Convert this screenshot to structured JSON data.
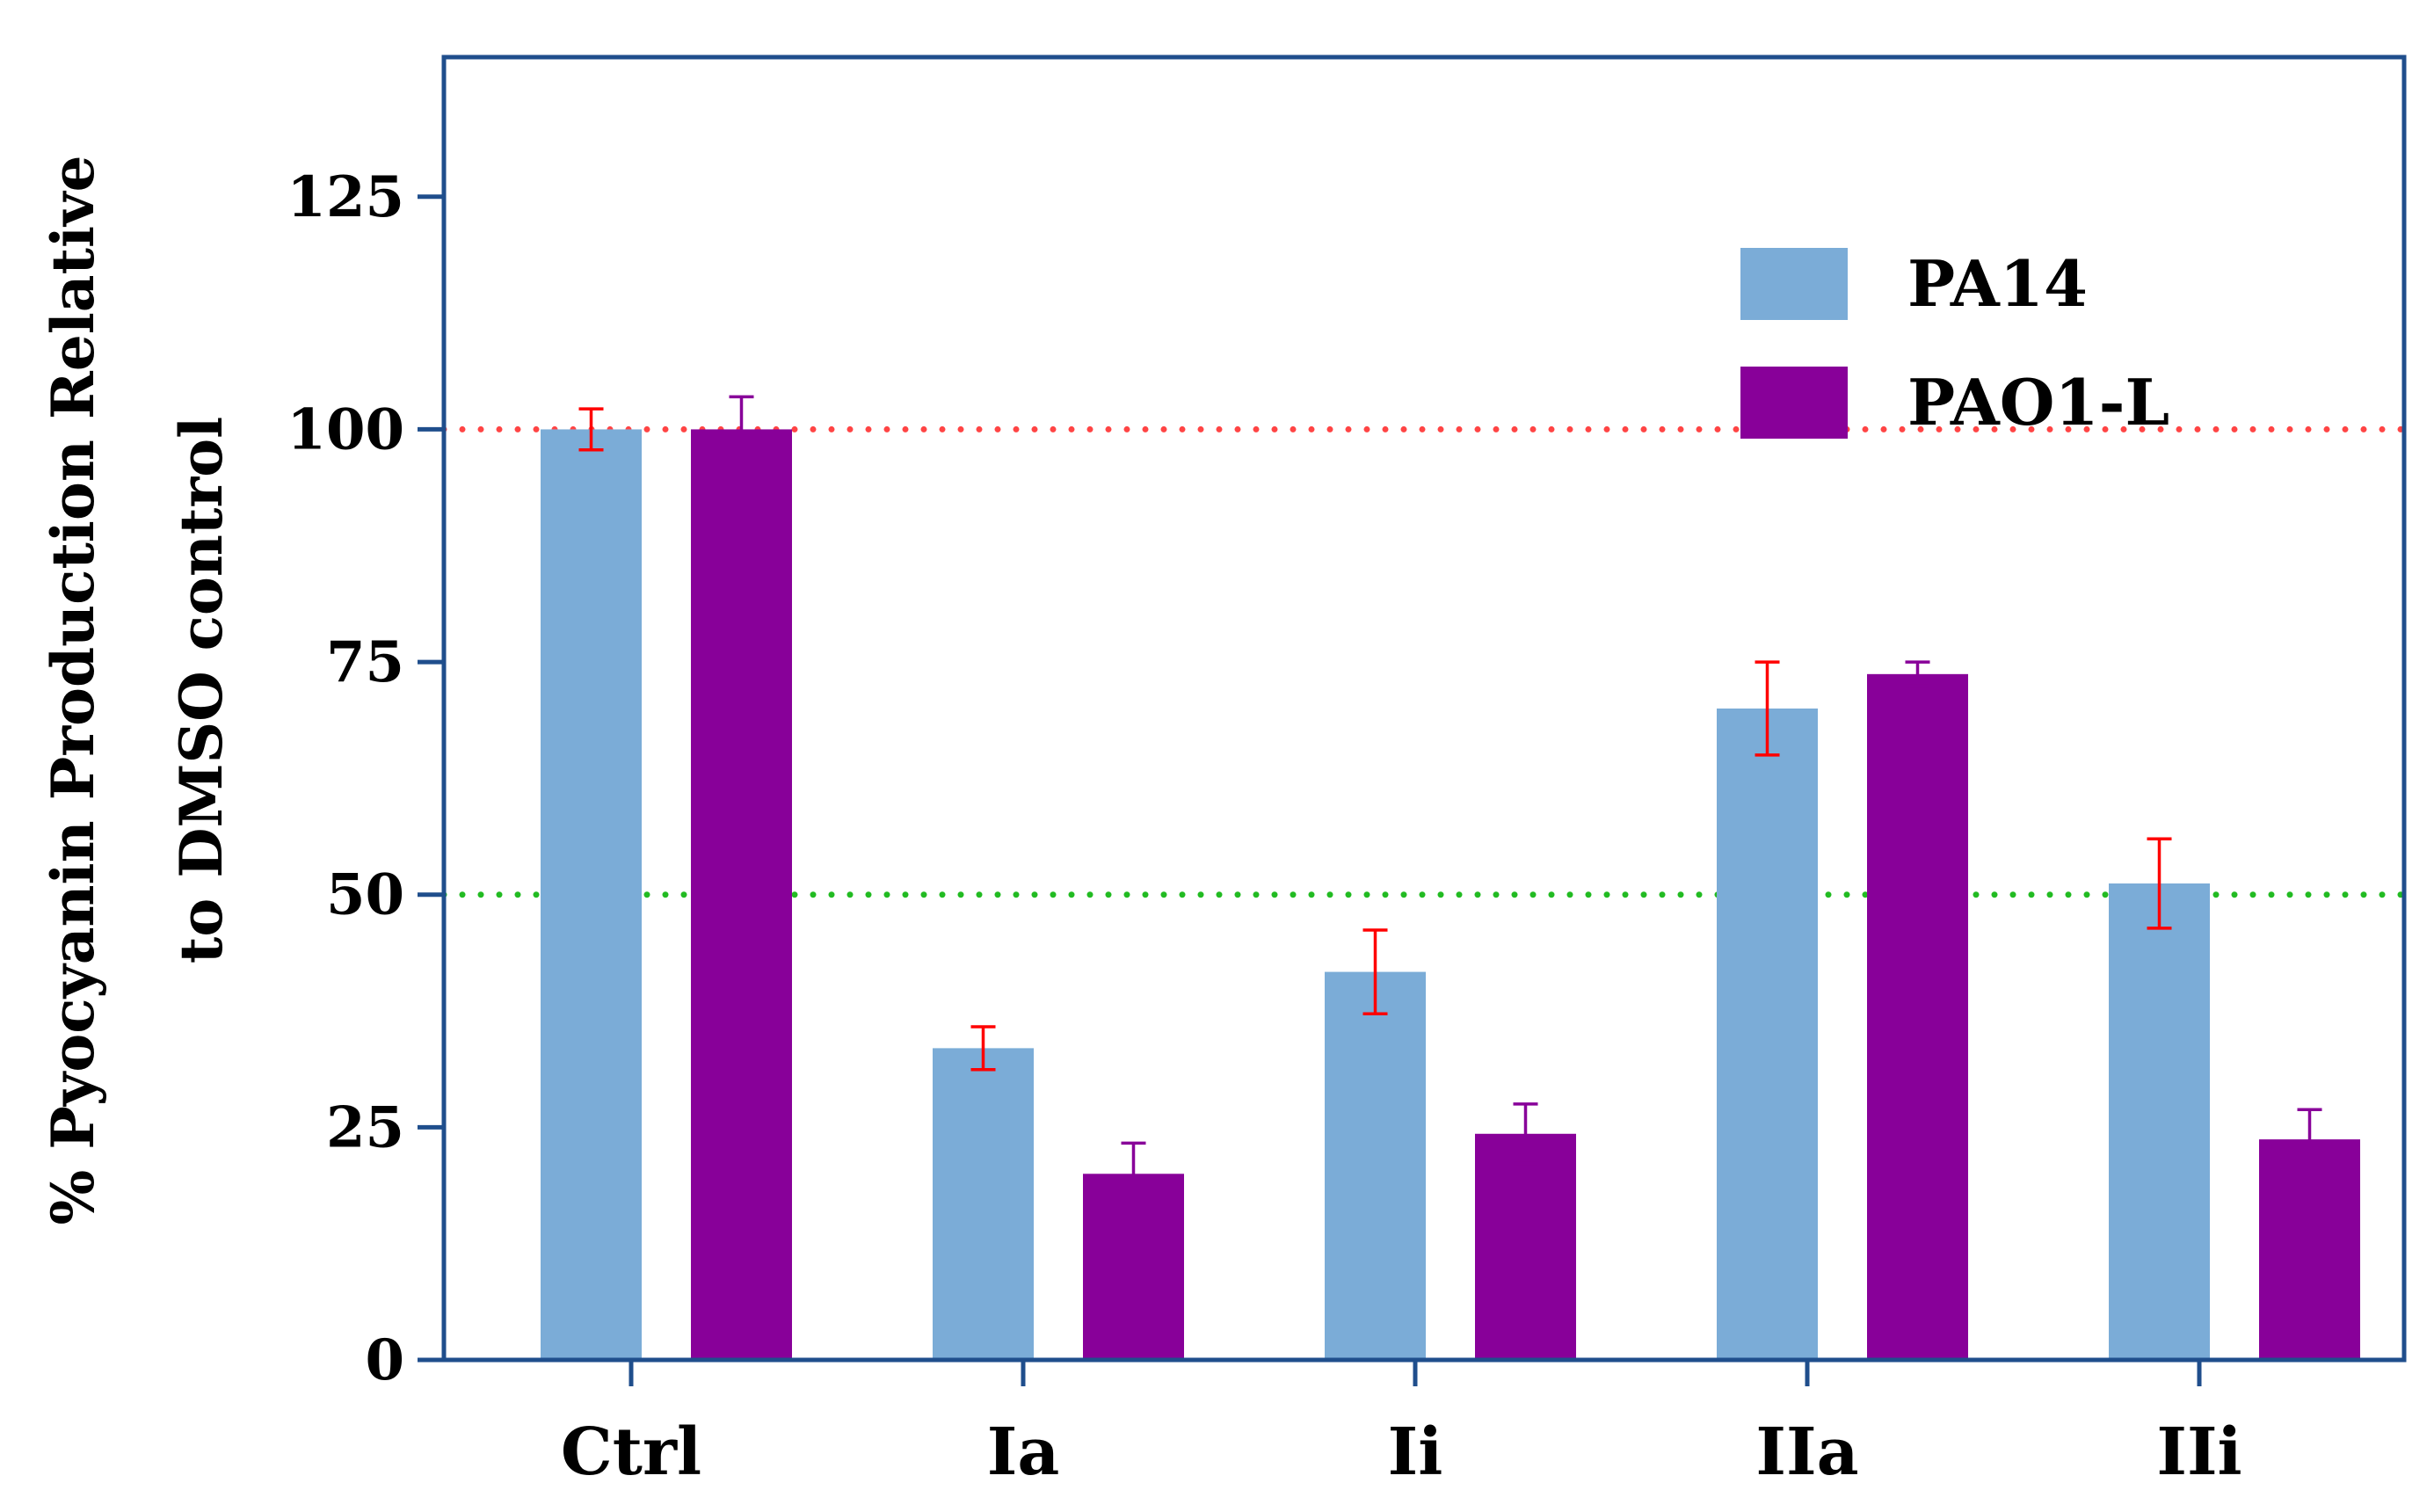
{
  "chart_data": {
    "type": "bar",
    "ylabel_lines": [
      "% Pyocyanin Production Relative",
      "to DMSO control"
    ],
    "xlabel": "",
    "categories": [
      "Ctrl",
      "Ia",
      "Ii",
      "IIa",
      "IIi"
    ],
    "series": [
      {
        "name": "PA14",
        "color": "#7BACD7",
        "error_color": "#FF0000",
        "values": [
          100,
          33.5,
          41.7,
          70,
          51.2
        ],
        "errors": [
          2.2,
          2.3,
          4.5,
          5,
          4.8
        ]
      },
      {
        "name": "PAO1-L",
        "color": "#880099",
        "error_color": "#880099",
        "values": [
          100,
          20,
          24.3,
          73.7,
          23.7
        ],
        "errors": [
          3.5,
          3.3,
          3.2,
          1.3,
          3.2
        ]
      }
    ],
    "ylim": [
      0,
      140
    ],
    "yticks": [
      0,
      25,
      50,
      75,
      100,
      125
    ],
    "reference_lines": [
      {
        "value": 100,
        "color": "#FF4444",
        "style": "dotted"
      },
      {
        "value": 50,
        "color": "#22BB22",
        "style": "dotted"
      }
    ],
    "axis_color": "#1F4E8C",
    "grid": false,
    "legend_position": "top-right"
  }
}
